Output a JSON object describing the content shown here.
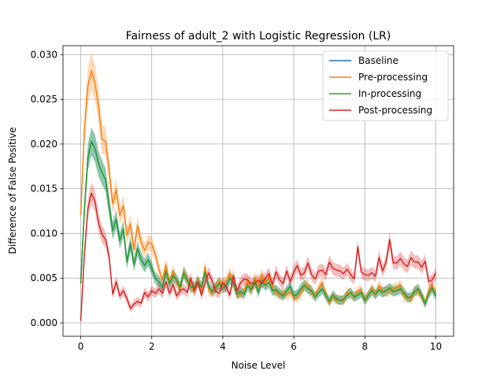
{
  "chart_data": {
    "type": "line",
    "title": "Fairness of adult_2 with Logistic Regression (LR)",
    "xlabel": "Noise Level",
    "ylabel": "Difference of False Positive",
    "xlim": [
      -0.5,
      10.5
    ],
    "ylim": [
      -0.0015,
      0.031
    ],
    "xticks": [
      0,
      2,
      4,
      6,
      8,
      10
    ],
    "xtick_labels": [
      "0",
      "2",
      "4",
      "6",
      "8",
      "10"
    ],
    "yticks": [
      0.0,
      0.005,
      0.01,
      0.015,
      0.02,
      0.025,
      0.03
    ],
    "ytick_labels": [
      "0.000",
      "0.005",
      "0.010",
      "0.015",
      "0.020",
      "0.025",
      "0.030"
    ],
    "grid": true,
    "legend_position": "top-right",
    "x_step": 0.1,
    "series": [
      {
        "name": "Baseline",
        "color": "#1f77b4",
        "values": [
          0.0044,
          0.0125,
          0.0185,
          0.0203,
          0.0195,
          0.0178,
          0.0168,
          0.016,
          0.0131,
          0.0103,
          0.0116,
          0.0092,
          0.0105,
          0.0068,
          0.0089,
          0.0065,
          0.0083,
          0.0071,
          0.0064,
          0.0071,
          0.0061,
          0.005,
          0.0046,
          0.004,
          0.0058,
          0.0044,
          0.0053,
          0.0048,
          0.004,
          0.0056,
          0.0048,
          0.004,
          0.004,
          0.0046,
          0.004,
          0.0057,
          0.0041,
          0.0035,
          0.004,
          0.0044,
          0.0039,
          0.0041,
          0.005,
          0.0045,
          0.0032,
          0.0035,
          0.0032,
          0.0042,
          0.0037,
          0.0047,
          0.0034,
          0.0047,
          0.0042,
          0.0045,
          0.0036,
          0.0037,
          0.0033,
          0.003,
          0.0036,
          0.0041,
          0.003,
          0.0032,
          0.0038,
          0.0042,
          0.0038,
          0.0036,
          0.0029,
          0.0034,
          0.0038,
          0.0031,
          0.0024,
          0.0031,
          0.0027,
          0.0025,
          0.0026,
          0.0031,
          0.0034,
          0.0029,
          0.0031,
          0.0034,
          0.0025,
          0.0031,
          0.0036,
          0.0032,
          0.0037,
          0.0034,
          0.0036,
          0.0039,
          0.0035,
          0.0036,
          0.0038,
          0.0034,
          0.0028,
          0.0029,
          0.0035,
          0.0038,
          0.0031,
          0.0021,
          0.0033,
          0.0039,
          0.003
        ]
      },
      {
        "name": "Pre-processing",
        "color": "#ff7f0e",
        "values": [
          0.012,
          0.0215,
          0.0265,
          0.0282,
          0.0268,
          0.0243,
          0.0205,
          0.0203,
          0.017,
          0.0133,
          0.0149,
          0.012,
          0.0131,
          0.0098,
          0.0111,
          0.0082,
          0.0109,
          0.009,
          0.0081,
          0.009,
          0.0088,
          0.0077,
          0.006,
          0.0048,
          0.0065,
          0.0045,
          0.0058,
          0.0045,
          0.0038,
          0.0057,
          0.0049,
          0.0043,
          0.0034,
          0.0048,
          0.0036,
          0.0063,
          0.0037,
          0.0033,
          0.004,
          0.0047,
          0.0041,
          0.0047,
          0.0056,
          0.0043,
          0.0032,
          0.0031,
          0.0036,
          0.0048,
          0.0035,
          0.0051,
          0.0041,
          0.0055,
          0.0043,
          0.0052,
          0.004,
          0.0034,
          0.0031,
          0.0034,
          0.0031,
          0.0034,
          0.0028,
          0.0028,
          0.0033,
          0.0042,
          0.0043,
          0.0033,
          0.003,
          0.0039,
          0.0045,
          0.0032,
          0.0022,
          0.003,
          0.0025,
          0.0026,
          0.0024,
          0.0034,
          0.0033,
          0.0029,
          0.0036,
          0.0036,
          0.0026,
          0.0031,
          0.0039,
          0.0031,
          0.0042,
          0.0035,
          0.0035,
          0.0035,
          0.0038,
          0.0039,
          0.0042,
          0.0029,
          0.0029,
          0.0026,
          0.0035,
          0.0036,
          0.0029,
          0.0023,
          0.0036,
          0.0042,
          0.0032
        ]
      },
      {
        "name": "In-processing",
        "color": "#2ca02c",
        "values": [
          0.0044,
          0.0125,
          0.0185,
          0.0203,
          0.0195,
          0.0178,
          0.0168,
          0.016,
          0.0131,
          0.0103,
          0.0116,
          0.0092,
          0.0105,
          0.0068,
          0.0089,
          0.0065,
          0.0083,
          0.0071,
          0.0064,
          0.0071,
          0.0061,
          0.005,
          0.0046,
          0.004,
          0.0058,
          0.0044,
          0.0053,
          0.0048,
          0.004,
          0.0056,
          0.0048,
          0.004,
          0.004,
          0.0046,
          0.004,
          0.0057,
          0.0041,
          0.0035,
          0.004,
          0.0044,
          0.0039,
          0.0041,
          0.005,
          0.0045,
          0.0032,
          0.0035,
          0.0032,
          0.0042,
          0.0037,
          0.0047,
          0.0034,
          0.0047,
          0.0042,
          0.0045,
          0.0036,
          0.0037,
          0.0033,
          0.003,
          0.0036,
          0.0041,
          0.003,
          0.0032,
          0.0038,
          0.0042,
          0.0038,
          0.0036,
          0.0029,
          0.0034,
          0.0038,
          0.0031,
          0.0024,
          0.0031,
          0.0027,
          0.0025,
          0.0026,
          0.0031,
          0.0034,
          0.0029,
          0.0031,
          0.0034,
          0.0025,
          0.0031,
          0.0036,
          0.0032,
          0.0037,
          0.0034,
          0.0036,
          0.0039,
          0.0035,
          0.0036,
          0.0038,
          0.0034,
          0.0028,
          0.0029,
          0.0035,
          0.0038,
          0.0031,
          0.0021,
          0.0033,
          0.0039,
          0.003
        ]
      },
      {
        "name": "Post-processing",
        "color": "#d62728",
        "values": [
          0.0002,
          0.0075,
          0.0128,
          0.0145,
          0.0136,
          0.0112,
          0.0099,
          0.0093,
          0.0074,
          0.0032,
          0.0046,
          0.003,
          0.0036,
          0.0027,
          0.0016,
          0.0021,
          0.0024,
          0.0022,
          0.0034,
          0.0029,
          0.0036,
          0.0033,
          0.0038,
          0.0033,
          0.0046,
          0.0033,
          0.0043,
          0.003,
          0.0036,
          0.0038,
          0.0034,
          0.005,
          0.0036,
          0.0046,
          0.0031,
          0.0045,
          0.0056,
          0.0047,
          0.0035,
          0.0033,
          0.0045,
          0.004,
          0.0031,
          0.0053,
          0.0036,
          0.0045,
          0.0049,
          0.0048,
          0.0044,
          0.0044,
          0.0048,
          0.0044,
          0.005,
          0.0055,
          0.0043,
          0.0057,
          0.0048,
          0.0044,
          0.0058,
          0.0046,
          0.0057,
          0.0064,
          0.0053,
          0.0056,
          0.0067,
          0.0054,
          0.0049,
          0.0058,
          0.0059,
          0.0054,
          0.0068,
          0.0061,
          0.0059,
          0.0058,
          0.0055,
          0.006,
          0.0054,
          0.0049,
          0.0085,
          0.0057,
          0.0054,
          0.0053,
          0.0056,
          0.0052,
          0.0073,
          0.0058,
          0.0068,
          0.0093,
          0.0067,
          0.0067,
          0.0072,
          0.0066,
          0.0063,
          0.0073,
          0.0068,
          0.0068,
          0.0062,
          0.0069,
          0.0046,
          0.0048,
          0.0056
        ]
      }
    ]
  }
}
